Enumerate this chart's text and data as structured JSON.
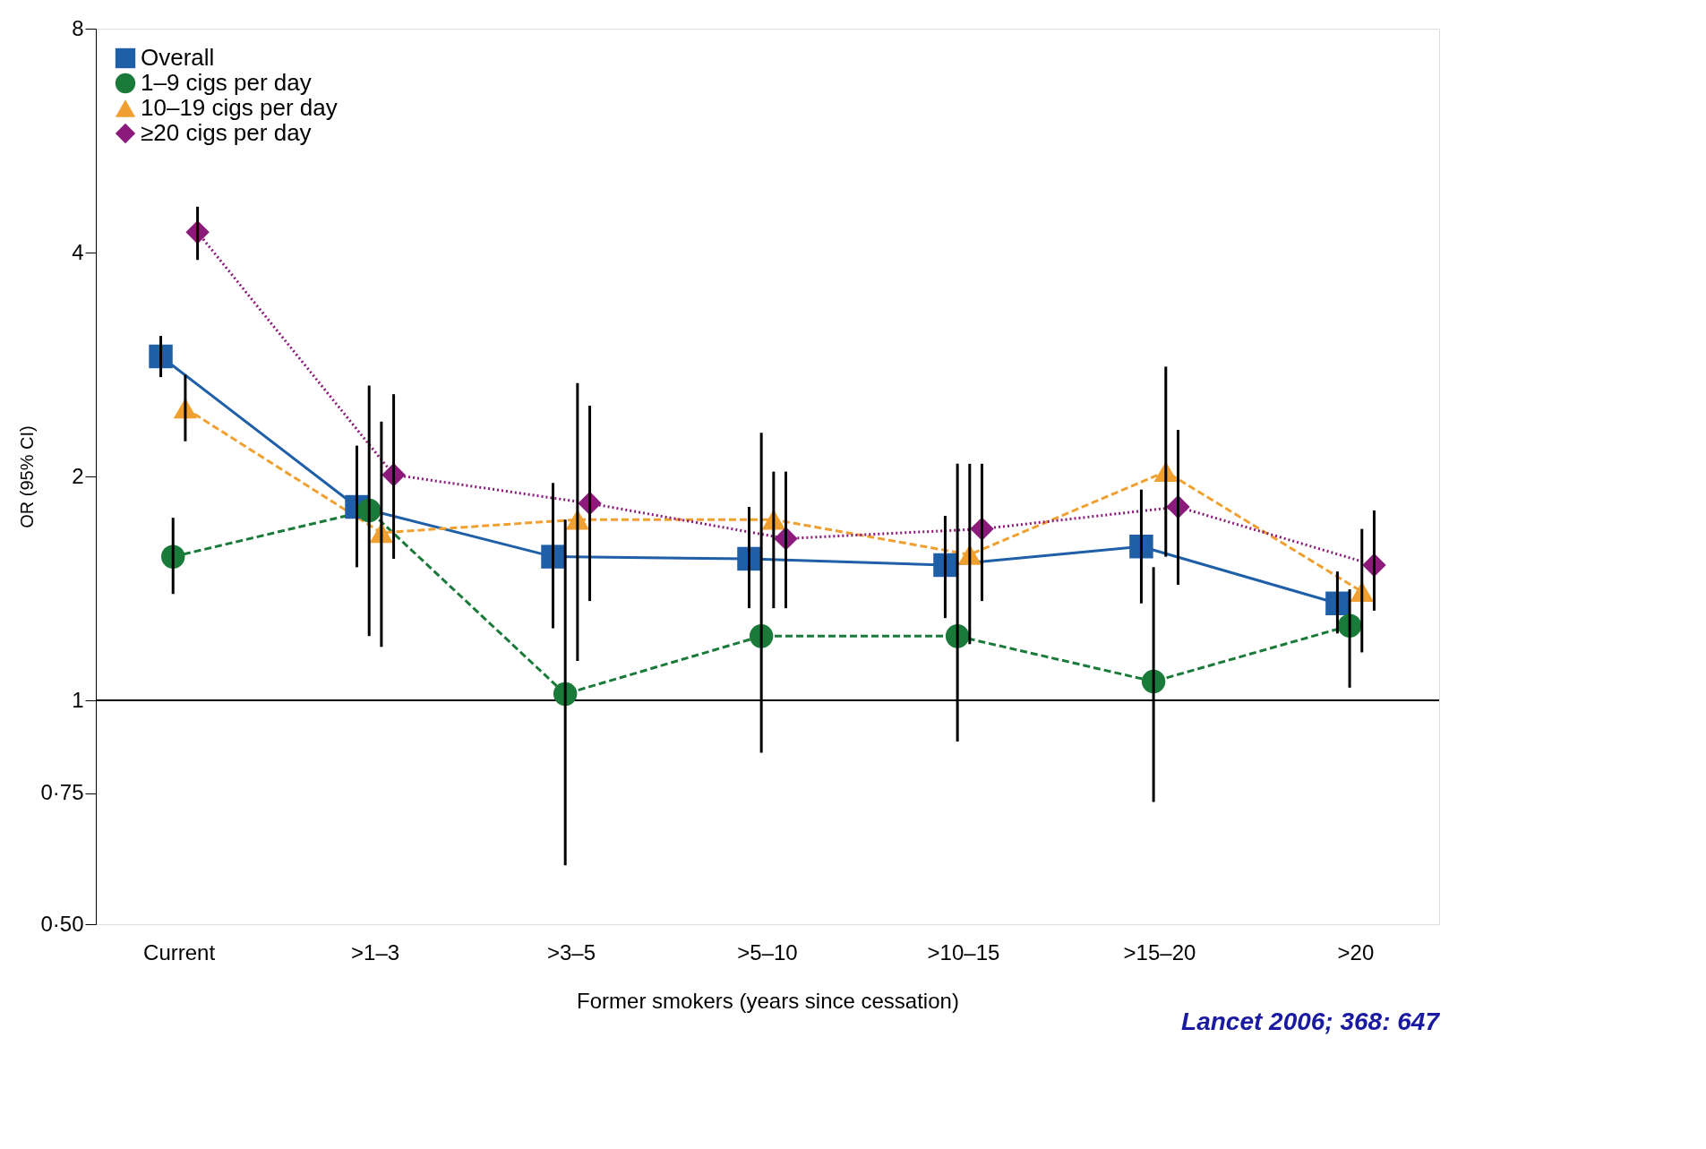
{
  "chart_data": {
    "type": "line",
    "ylabel": "OR (95% CI)",
    "xlabel": "Former smokers  (years since cessation)",
    "categories": [
      "Current",
      ">1–3",
      ">3–5",
      ">5–10",
      ">10–15",
      ">15–20",
      ">20"
    ],
    "log": "y",
    "ylim": [
      0.5,
      8
    ],
    "yticks": [
      {
        "value": 0.5,
        "label": "0·50"
      },
      {
        "value": 0.75,
        "label": "0·75"
      },
      1,
      2,
      4,
      8
    ],
    "grid": false,
    "legend": "top left",
    "series": [
      {
        "name": "Overall",
        "color": "#1f5fa8",
        "marker": "square",
        "line_style": "solid",
        "values": [
          2.9,
          1.82,
          1.56,
          1.55,
          1.52,
          1.61,
          1.35
        ],
        "errors": [
          [
            2.72,
            3.09
          ],
          [
            1.51,
            2.2
          ],
          [
            1.25,
            1.96
          ],
          [
            1.33,
            1.82
          ],
          [
            1.29,
            1.77
          ],
          [
            1.35,
            1.92
          ],
          [
            1.23,
            1.49
          ]
        ]
      },
      {
        "name": "1–9 cigs per day",
        "color": "#1a7a3a",
        "marker": "circle",
        "line_style": "dashed",
        "values": [
          1.56,
          1.8,
          1.02,
          1.22,
          1.22,
          1.06,
          1.26
        ],
        "errors": [
          [
            1.39,
            1.76
          ],
          [
            1.22,
            2.65
          ],
          [
            0.6,
            1.75
          ],
          [
            0.85,
            2.29
          ],
          [
            0.88,
            2.08
          ],
          [
            0.73,
            1.51
          ],
          [
            1.04,
            1.41
          ]
        ]
      },
      {
        "name": "10–19 cigs per day",
        "color": "#f0a030",
        "marker": "triangle",
        "line_style": "dashed",
        "values": [
          2.47,
          1.68,
          1.75,
          1.75,
          1.57,
          2.03,
          1.4
        ],
        "errors": [
          [
            2.23,
            2.74
          ],
          [
            1.18,
            2.37
          ],
          [
            1.13,
            2.67
          ],
          [
            1.33,
            2.03
          ],
          [
            1.19,
            2.08
          ],
          [
            1.56,
            2.81
          ],
          [
            1.16,
            1.7
          ]
        ]
      },
      {
        "name": "≥20 cigs per day",
        "color": "#8b1a7a",
        "marker": "diamond",
        "line_style": "dotted",
        "values": [
          4.26,
          2.01,
          1.84,
          1.65,
          1.7,
          1.82,
          1.52
        ],
        "errors": [
          [
            3.91,
            4.61
          ],
          [
            1.55,
            2.58
          ],
          [
            1.36,
            2.49
          ],
          [
            1.33,
            2.03
          ],
          [
            1.36,
            2.08
          ],
          [
            1.43,
            2.31
          ],
          [
            1.32,
            1.8
          ]
        ]
      }
    ],
    "ref_lines": [
      {
        "axis": "y",
        "value": 1,
        "color": "#000000"
      }
    ],
    "annotations": [
      "Lancet 2006; 368: 647"
    ]
  }
}
